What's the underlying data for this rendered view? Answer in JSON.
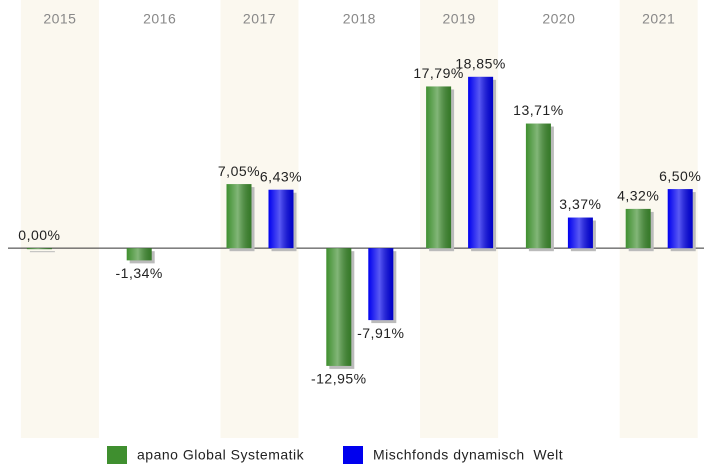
{
  "chart_data": {
    "type": "bar",
    "categories": [
      "2015",
      "2016",
      "2017",
      "2018",
      "2019",
      "2020",
      "2021"
    ],
    "series": [
      {
        "name": "apano Global Systematik",
        "color": "#3f8f2f",
        "values": [
          0.0,
          -1.34,
          7.05,
          -12.95,
          17.79,
          13.71,
          4.32
        ],
        "value_labels": [
          "0,00%",
          "-1,34%",
          "7,05%",
          "-12,95%",
          "17,79%",
          "13,71%",
          "4,32%"
        ]
      },
      {
        "name": "Mischfonds dynamisch  Welt",
        "color": "#0000ee",
        "values": [
          null,
          null,
          6.43,
          -7.91,
          18.85,
          3.37,
          6.5
        ],
        "value_labels": [
          null,
          null,
          "6,43%",
          "-7,91%",
          "18,85%",
          "3,37%",
          "6,50%"
        ]
      }
    ],
    "ylim": [
      -20,
      24
    ]
  }
}
